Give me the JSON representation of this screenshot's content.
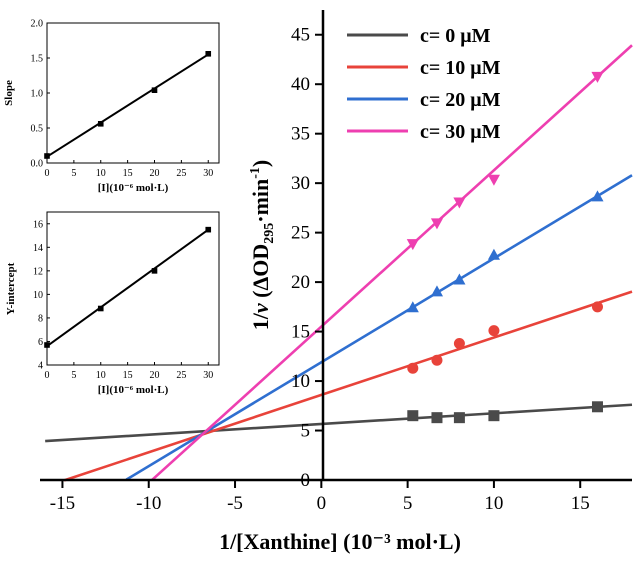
{
  "chart_data": [
    {
      "id": "main",
      "type": "scatter",
      "xlabel": "1/[Xanthine] (10⁻³ mol·L)",
      "ylabel_parts": [
        "1/",
        "v",
        " (ΔOD",
        "295",
        "·min",
        "-1",
        ")"
      ],
      "xlim": [
        -16.3,
        18
      ],
      "ylim": [
        0,
        47.5
      ],
      "xticks": [
        -15,
        -10,
        -5,
        0,
        5,
        10,
        15
      ],
      "yticks": [
        0,
        5,
        10,
        15,
        20,
        25,
        30,
        35,
        40,
        45
      ],
      "grid": false,
      "legend_position": "top-right",
      "series": [
        {
          "name": "c= 0 μM",
          "color": "#4a4a4a",
          "marker": "square",
          "x": [
            5.3,
            6.7,
            8.0,
            10.0,
            16.0
          ],
          "y": [
            6.5,
            6.3,
            6.3,
            6.5,
            7.4
          ],
          "fit": {
            "x0": -16,
            "x1": 18,
            "slope": 0.108,
            "intercept": 5.66
          }
        },
        {
          "name": "c= 10 μM",
          "color": "#e8433a",
          "marker": "circle",
          "x": [
            5.3,
            6.7,
            8.0,
            10.0,
            16.0
          ],
          "y": [
            11.3,
            12.1,
            13.8,
            15.1,
            17.5
          ],
          "fit": {
            "x0": -14.9,
            "x1": 18,
            "slope": 0.58,
            "intercept": 8.6
          }
        },
        {
          "name": "c= 20 μM",
          "color": "#2f6fd0",
          "marker": "triangle-up",
          "x": [
            5.3,
            6.7,
            8.0,
            10.0,
            16.0
          ],
          "y": [
            17.4,
            19.0,
            20.2,
            22.7,
            28.6
          ],
          "fit": {
            "x0": -11.3,
            "x1": 18,
            "slope": 1.05,
            "intercept": 11.9
          }
        },
        {
          "name": "c= 30 μM",
          "color": "#ee3fb0",
          "marker": "triangle-down",
          "x": [
            5.3,
            6.7,
            8.0,
            10.0,
            16.0
          ],
          "y": [
            23.9,
            26.0,
            28.1,
            30.4,
            40.8
          ],
          "fit": {
            "x0": -9.8,
            "x1": 18,
            "slope": 1.58,
            "intercept": 15.5
          }
        }
      ]
    },
    {
      "id": "inset_slope",
      "type": "scatter",
      "xlabel": "[I](10⁻⁶ mol·L)",
      "ylabel": "Slope",
      "xlim": [
        0,
        32
      ],
      "ylim": [
        0,
        2.0
      ],
      "xticks": [
        0,
        5,
        10,
        15,
        20,
        25,
        30
      ],
      "yticks": [
        0.0,
        0.5,
        1.0,
        1.5,
        2.0
      ],
      "ytick_labels": [
        "0.0",
        "0.5",
        "1.0",
        "1.5",
        "2.0"
      ],
      "color": "#000000",
      "marker": "square",
      "x": [
        0,
        10,
        20,
        30
      ],
      "y": [
        0.1,
        0.56,
        1.04,
        1.56
      ],
      "fit": {
        "x0": 0,
        "x1": 30,
        "slope": 0.0487,
        "intercept": 0.09
      }
    },
    {
      "id": "inset_intercept",
      "type": "scatter",
      "xlabel": "[I](10⁻⁶ mol·L)",
      "ylabel": "Y-intercept",
      "xlim": [
        0,
        32
      ],
      "ylim": [
        4,
        17
      ],
      "xticks": [
        0,
        5,
        10,
        15,
        20,
        25,
        30
      ],
      "yticks": [
        4,
        6,
        8,
        10,
        12,
        14,
        16
      ],
      "ytick_labels": [
        "4",
        "6",
        "8",
        "10",
        "12",
        "14",
        "16"
      ],
      "color": "#000000",
      "marker": "square",
      "x": [
        0,
        10,
        20,
        30
      ],
      "y": [
        5.7,
        8.8,
        12.0,
        15.5
      ],
      "fit": {
        "x0": 0,
        "x1": 30,
        "slope": 0.33,
        "intercept": 5.6
      }
    }
  ]
}
